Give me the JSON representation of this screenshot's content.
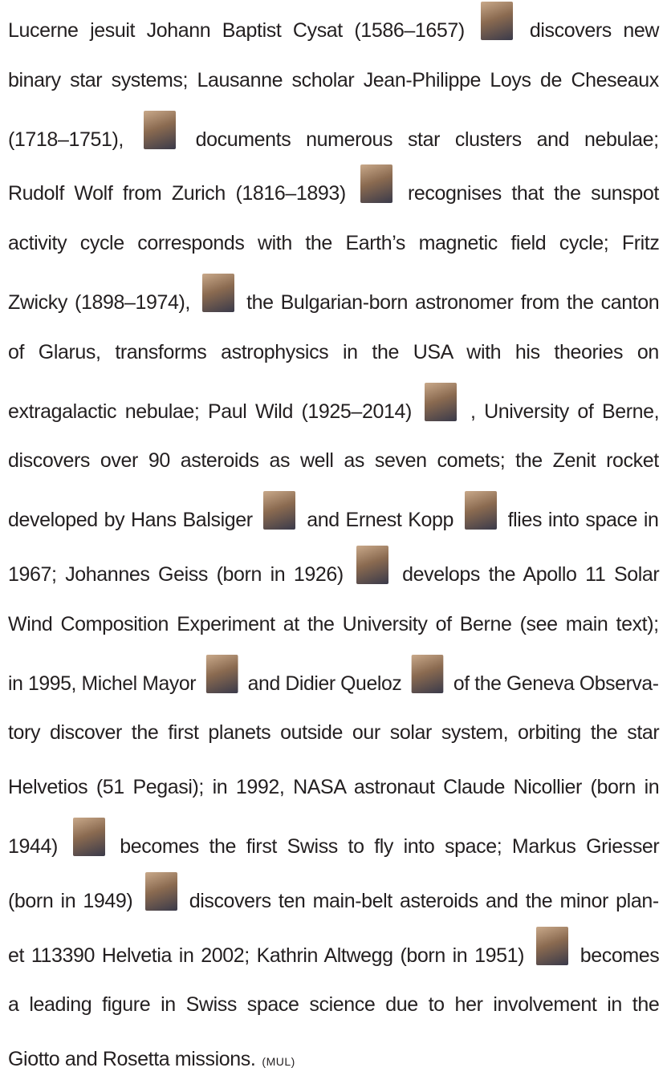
{
  "paragraph": {
    "lines": [
      [
        "Lucerne jesuit Johann Baptist Cysat (1586–1657)",
        "discovers new"
      ],
      [
        "binary star systems; Lausanne scholar Jean-Philippe Loys de Cheseaux"
      ],
      [
        "(1718–1751),",
        "documents numerous star clusters and nebulae;"
      ],
      [
        "Rudolf Wolf from Zurich (1816–1893)",
        "recognises that the sunspot"
      ],
      [
        "activity cycle corresponds with the Earth’s magnetic field cycle; Fritz"
      ],
      [
        "Zwicky (1898–1974),",
        "the Bulgarian-born astronomer from the canton"
      ],
      [
        "of Glarus, transforms astrophysics in the USA with his theories on"
      ],
      [
        "extragalactic nebulae; Paul Wild (1925–2014)",
        ", University of Berne,"
      ],
      [
        "discovers over 90 asteroids as well as seven comets; the Zenit rocket"
      ],
      [
        "developed by Hans Balsiger",
        "and Ernest Kopp",
        "flies into space in"
      ],
      [
        "1967; Johannes Geiss (born in 1926)",
        "develops the Apollo 11 Solar"
      ],
      [
        "Wind Composition Experiment at the University of Berne (see main text);"
      ],
      [
        "in 1995, Michel Mayor",
        "and Didier Queloz",
        "of the Geneva Observa-"
      ],
      [
        "tory discover the first planets outside our solar system, orbiting the star"
      ],
      [
        "Helvetios (51 Pegasi); in 1992, NASA astronaut Claude Nicollier (born in"
      ],
      [
        "1944)",
        "becomes the first Swiss to fly into space; Markus Griesser"
      ],
      [
        "(born in 1949)",
        "discovers ten main-belt asteroids and the minor plan-"
      ],
      [
        "et 113390 Helvetia in 2002; Kathrin Altwegg (born in 1951)",
        "becomes"
      ],
      [
        "a leading figure in Swiss space science due to her involvement in the"
      ],
      [
        "Giotto and Rosetta missions."
      ]
    ],
    "source": "(MUL)"
  }
}
